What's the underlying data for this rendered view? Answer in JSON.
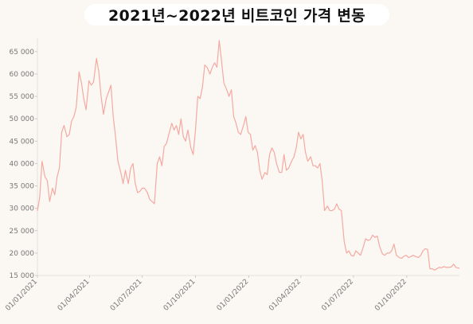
{
  "chart_data": {
    "type": "line",
    "title": "2021년~2022년 비트코인 가격 변동",
    "xlabel": "",
    "ylabel": "",
    "x_range": [
      "2021-01-01",
      "2022-12-31"
    ],
    "ylim": [
      15000,
      68000
    ],
    "y_ticks": [
      15000,
      20000,
      25000,
      30000,
      35000,
      40000,
      45000,
      50000,
      55000,
      60000,
      65000
    ],
    "y_tick_labels": [
      "15 000",
      "20 000",
      "25 000",
      "30 000",
      "35 000",
      "40 000",
      "45 000",
      "50 000",
      "55 000",
      "60 000",
      "65 000"
    ],
    "x_ticks": [
      "2021-01-01",
      "2021-04-01",
      "2021-07-01",
      "2021-10-01",
      "2022-01-01",
      "2022-04-01",
      "2022-07-01",
      "2022-10-01"
    ],
    "x_tick_labels": [
      "01/01/2021",
      "01/04/2021",
      "01/07/2021",
      "01/10/2021",
      "01/01/2022",
      "01/04/2022",
      "01/07/2022",
      "01/10/2022"
    ],
    "grid": false,
    "line_color": "#f4a9a1",
    "series": [
      {
        "x": [
          "2021-01-01",
          "2021-01-05",
          "2021-01-09",
          "2021-01-14",
          "2021-01-18",
          "2021-01-22",
          "2021-01-27",
          "2021-01-31",
          "2021-02-04",
          "2021-02-08",
          "2021-02-12",
          "2021-02-16",
          "2021-02-21",
          "2021-02-25",
          "2021-03-01",
          "2021-03-05",
          "2021-03-09",
          "2021-03-14",
          "2021-03-18",
          "2021-03-22",
          "2021-03-26",
          "2021-03-31",
          "2021-04-04",
          "2021-04-08",
          "2021-04-13",
          "2021-04-17",
          "2021-04-21",
          "2021-04-25",
          "2021-04-30",
          "2021-05-04",
          "2021-05-08",
          "2021-05-12",
          "2021-05-16",
          "2021-05-20",
          "2021-05-25",
          "2021-05-29",
          "2021-06-02",
          "2021-06-07",
          "2021-06-11",
          "2021-06-15",
          "2021-06-19",
          "2021-06-23",
          "2021-06-27",
          "2021-07-01",
          "2021-07-05",
          "2021-07-10",
          "2021-07-14",
          "2021-07-18",
          "2021-07-22",
          "2021-07-27",
          "2021-07-31",
          "2021-08-04",
          "2021-08-08",
          "2021-08-12",
          "2021-08-16",
          "2021-08-21",
          "2021-08-25",
          "2021-08-29",
          "2021-09-02",
          "2021-09-06",
          "2021-09-10",
          "2021-09-14",
          "2021-09-18",
          "2021-09-23",
          "2021-09-27",
          "2021-10-01",
          "2021-10-05",
          "2021-10-09",
          "2021-10-13",
          "2021-10-17",
          "2021-10-21",
          "2021-10-26",
          "2021-10-30",
          "2021-11-03",
          "2021-11-07",
          "2021-11-11",
          "2021-11-15",
          "2021-11-19",
          "2021-11-24",
          "2021-11-28",
          "2021-12-02",
          "2021-12-06",
          "2021-12-10",
          "2021-12-14",
          "2021-12-18",
          "2021-12-23",
          "2021-12-27",
          "2021-12-31",
          "2022-01-04",
          "2022-01-08",
          "2022-01-12",
          "2022-01-16",
          "2022-01-20",
          "2022-01-24",
          "2022-01-29",
          "2022-02-02",
          "2022-02-06",
          "2022-02-10",
          "2022-02-14",
          "2022-02-18",
          "2022-02-23",
          "2022-02-27",
          "2022-03-03",
          "2022-03-07",
          "2022-03-11",
          "2022-03-16",
          "2022-03-20",
          "2022-03-24",
          "2022-03-28",
          "2022-04-01",
          "2022-04-05",
          "2022-04-09",
          "2022-04-13",
          "2022-04-18",
          "2022-04-22",
          "2022-04-26",
          "2022-04-30",
          "2022-05-04",
          "2022-05-08",
          "2022-05-12",
          "2022-05-17",
          "2022-05-21",
          "2022-05-25",
          "2022-05-29",
          "2022-06-02",
          "2022-06-06",
          "2022-06-10",
          "2022-06-15",
          "2022-06-19",
          "2022-06-23",
          "2022-06-27",
          "2022-07-01",
          "2022-07-05",
          "2022-07-09",
          "2022-07-13",
          "2022-07-17",
          "2022-07-22",
          "2022-07-26",
          "2022-07-30",
          "2022-08-03",
          "2022-08-07",
          "2022-08-11",
          "2022-08-15",
          "2022-08-20",
          "2022-08-24",
          "2022-08-28",
          "2022-09-01",
          "2022-09-05",
          "2022-09-09",
          "2022-09-13",
          "2022-09-18",
          "2022-09-22",
          "2022-09-26",
          "2022-09-30",
          "2022-10-04",
          "2022-10-08",
          "2022-10-12",
          "2022-10-17",
          "2022-10-21",
          "2022-10-25",
          "2022-10-29",
          "2022-11-02",
          "2022-11-06",
          "2022-11-10",
          "2022-11-14",
          "2022-11-18",
          "2022-11-22",
          "2022-11-26",
          "2022-11-30",
          "2022-12-04",
          "2022-12-08",
          "2022-12-13",
          "2022-12-17",
          "2022-12-21",
          "2022-12-25",
          "2022-12-31"
        ],
        "y": [
          29400,
          32500,
          40500,
          37000,
          36200,
          31500,
          34500,
          33000,
          37000,
          39000,
          47000,
          48500,
          46000,
          46500,
          49500,
          50500,
          52500,
          60500,
          58000,
          54500,
          52000,
          58500,
          57500,
          58200,
          63500,
          60500,
          55000,
          51000,
          54500,
          56000,
          57500,
          50500,
          46000,
          40500,
          38000,
          35500,
          38500,
          35500,
          39000,
          40000,
          35500,
          33500,
          33800,
          34500,
          34500,
          33500,
          32000,
          31500,
          31000,
          40000,
          41500,
          39500,
          43800,
          44500,
          46500,
          49000,
          47500,
          48500,
          46500,
          50000,
          46000,
          45000,
          47500,
          43500,
          42000,
          47500,
          55000,
          54500,
          57000,
          62000,
          61500,
          60000,
          61500,
          62500,
          61500,
          67500,
          63000,
          58000,
          56500,
          55000,
          56500,
          50500,
          49000,
          47000,
          46500,
          48500,
          50500,
          47000,
          46500,
          43000,
          44000,
          42500,
          38500,
          36500,
          38000,
          37500,
          42000,
          43500,
          42500,
          40000,
          38000,
          38000,
          42000,
          38500,
          39000,
          40500,
          41500,
          43500,
          47000,
          45500,
          46500,
          42500,
          40500,
          41500,
          39500,
          39500,
          39000,
          40000,
          36000,
          29500,
          30500,
          29500,
          29500,
          29800,
          31000,
          29800,
          29500,
          22500,
          20000,
          20500,
          19500,
          19300,
          20500,
          20000,
          19500,
          21000,
          23200,
          22800,
          23000,
          24000,
          23500,
          23800,
          21500,
          19800,
          19500,
          20000,
          20000,
          20500,
          22000,
          19500,
          19000,
          18800,
          19300,
          19500,
          19000,
          19200,
          19500,
          19200,
          19000,
          19500,
          20500,
          21000,
          20800,
          16500,
          16500,
          16200,
          16500,
          16800,
          16700,
          17000,
          16800,
          16800,
          16900,
          17500,
          16800,
          16600
        ]
      }
    ]
  }
}
